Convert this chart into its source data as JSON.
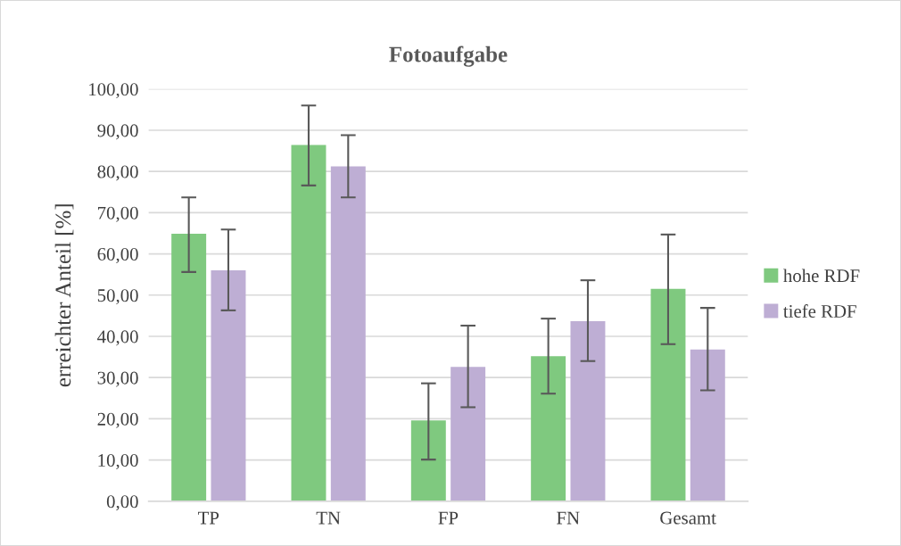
{
  "chart_data": {
    "type": "bar",
    "title": "Fotoaufgabe",
    "ylabel": "erreichter Anteil [%]",
    "categories": [
      "TP",
      "TN",
      "FP",
      "FN",
      "Gesamt"
    ],
    "series": [
      {
        "name": "hohe RDF",
        "color": "#7fc97f",
        "values": [
          64.9,
          86.4,
          19.6,
          35.2,
          51.5
        ],
        "errors": [
          [
            55.6,
            73.7
          ],
          [
            76.6,
            96.0
          ],
          [
            10.1,
            28.6
          ],
          [
            26.1,
            44.3
          ],
          [
            38.1,
            64.7
          ]
        ]
      },
      {
        "name": "tiefe RDF",
        "color": "#beaed4",
        "values": [
          56.0,
          81.2,
          32.6,
          43.7,
          36.8
        ],
        "errors": [
          [
            46.3,
            65.9
          ],
          [
            73.7,
            88.8
          ],
          [
            22.8,
            42.6
          ],
          [
            34.0,
            53.6
          ],
          [
            26.9,
            46.9
          ]
        ]
      }
    ],
    "ylim": [
      0,
      100
    ],
    "yticks": [
      {
        "value": 0,
        "label": "0,00"
      },
      {
        "value": 10,
        "label": "10,00"
      },
      {
        "value": 20,
        "label": "20,00"
      },
      {
        "value": 30,
        "label": "30,00"
      },
      {
        "value": 40,
        "label": "40,00"
      },
      {
        "value": 50,
        "label": "50,00"
      },
      {
        "value": 60,
        "label": "60,00"
      },
      {
        "value": 70,
        "label": "70,00"
      },
      {
        "value": 80,
        "label": "80,00"
      },
      {
        "value": 90,
        "label": "90,00"
      },
      {
        "value": 100,
        "label": "100,00"
      }
    ],
    "grid": "y",
    "legend": "right"
  }
}
